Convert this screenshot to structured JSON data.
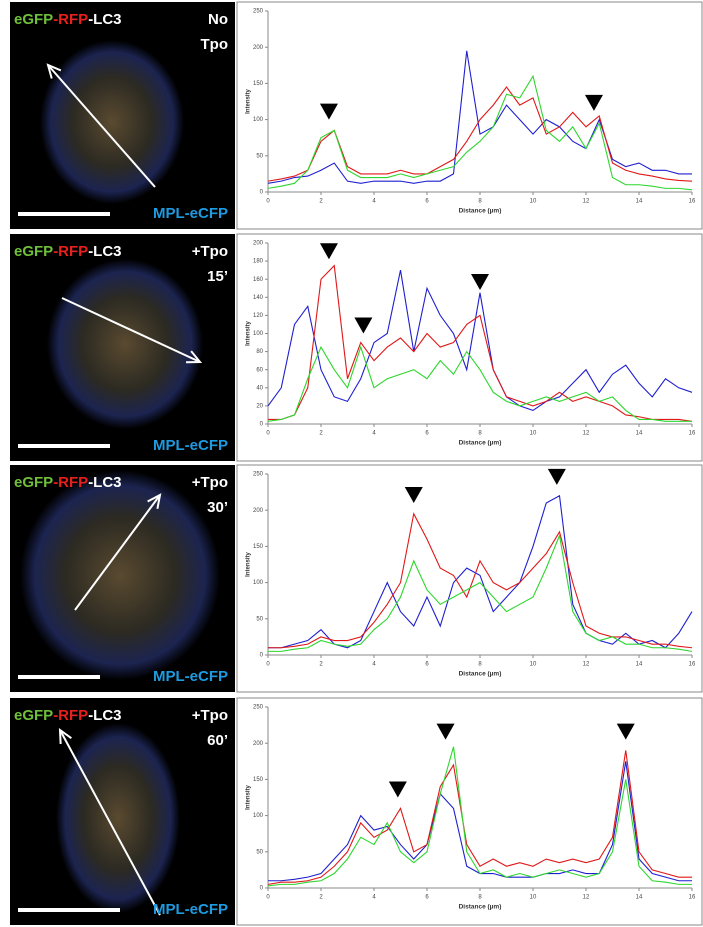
{
  "chart_data": [
    {
      "type": "line",
      "image_labels": {
        "egfp": "eGFP",
        "rfp": "-RFP",
        "lc3": "-LC3",
        "condition": [
          "No",
          "Tpo"
        ],
        "channel": "MPL-eCFP"
      },
      "xlabel": "Distance (µm)",
      "ylabel": "Intensity",
      "x": [
        0,
        0.5,
        1,
        1.5,
        2,
        2.5,
        3,
        3.5,
        4,
        4.5,
        5,
        5.5,
        6,
        6.5,
        7,
        7.5,
        8,
        8.5,
        9,
        9.5,
        10,
        10.5,
        11,
        11.5,
        12,
        12.5,
        13,
        13.5,
        14,
        14.5,
        15,
        15.5,
        16
      ],
      "series": [
        {
          "color": "#1f1fd0",
          "values": [
            12,
            15,
            20,
            22,
            30,
            40,
            15,
            12,
            15,
            15,
            15,
            12,
            15,
            15,
            25,
            195,
            80,
            90,
            120,
            100,
            80,
            100,
            90,
            70,
            60,
            100,
            45,
            35,
            40,
            30,
            30,
            25,
            25
          ]
        },
        {
          "color": "#e01818",
          "values": [
            15,
            18,
            22,
            30,
            70,
            85,
            35,
            25,
            25,
            25,
            30,
            25,
            25,
            35,
            45,
            70,
            100,
            120,
            145,
            120,
            130,
            80,
            90,
            110,
            90,
            105,
            40,
            30,
            25,
            22,
            18,
            16,
            15
          ]
        },
        {
          "color": "#2ed62e",
          "values": [
            5,
            8,
            12,
            30,
            75,
            85,
            30,
            20,
            20,
            20,
            25,
            20,
            25,
            30,
            35,
            55,
            70,
            90,
            135,
            130,
            160,
            85,
            70,
            90,
            60,
            95,
            20,
            10,
            10,
            8,
            5,
            5,
            3
          ]
        }
      ],
      "xlim": [
        0,
        16
      ],
      "ylim": [
        0,
        250
      ],
      "xticks": [
        0,
        2,
        4,
        6,
        8,
        10,
        12,
        14,
        16
      ],
      "yticks": [
        0,
        50,
        100,
        150,
        200,
        250
      ],
      "arrowheads": [
        {
          "x": 2.3,
          "y": 100
        },
        {
          "x": 12.3,
          "y": 112
        }
      ]
    },
    {
      "type": "line",
      "image_labels": {
        "egfp": "eGFP",
        "rfp": "-RFP",
        "lc3": "-LC3",
        "condition": [
          "+Tpo",
          "15’"
        ],
        "channel": "MPL-eCFP"
      },
      "xlabel": "Distance (µm)",
      "ylabel": "Intensity",
      "x": [
        0,
        0.5,
        1,
        1.5,
        2,
        2.5,
        3,
        3.5,
        4,
        4.5,
        5,
        5.5,
        6,
        6.5,
        7,
        7.5,
        8,
        8.5,
        9,
        9.5,
        10,
        10.5,
        11,
        11.5,
        12,
        12.5,
        13,
        13.5,
        14,
        14.5,
        15,
        15.5,
        16
      ],
      "series": [
        {
          "color": "#1f1fd0",
          "values": [
            20,
            40,
            110,
            130,
            60,
            30,
            25,
            50,
            90,
            100,
            170,
            80,
            150,
            120,
            100,
            60,
            145,
            60,
            30,
            20,
            15,
            25,
            30,
            45,
            60,
            35,
            55,
            65,
            45,
            30,
            50,
            40,
            35
          ]
        },
        {
          "color": "#e01818",
          "values": [
            5,
            5,
            10,
            40,
            160,
            175,
            50,
            90,
            70,
            85,
            95,
            80,
            100,
            85,
            90,
            110,
            120,
            60,
            30,
            25,
            20,
            25,
            35,
            25,
            30,
            25,
            20,
            10,
            8,
            5,
            5,
            5,
            3
          ]
        },
        {
          "color": "#2ed62e",
          "values": [
            3,
            5,
            10,
            50,
            85,
            60,
            40,
            85,
            40,
            50,
            55,
            60,
            50,
            70,
            55,
            80,
            60,
            35,
            25,
            20,
            25,
            30,
            25,
            30,
            35,
            25,
            30,
            15,
            5,
            5,
            3,
            3,
            3
          ]
        }
      ],
      "xlim": [
        0,
        16
      ],
      "ylim": [
        0,
        200
      ],
      "xticks": [
        0,
        2,
        4,
        6,
        8,
        10,
        12,
        14,
        16
      ],
      "yticks": [
        0,
        20,
        40,
        60,
        80,
        100,
        120,
        140,
        160,
        180,
        200
      ],
      "arrowheads": [
        {
          "x": 2.3,
          "y": 182
        },
        {
          "x": 3.6,
          "y": 100
        },
        {
          "x": 8,
          "y": 148
        }
      ]
    },
    {
      "type": "line",
      "image_labels": {
        "egfp": "eGFP",
        "rfp": "-RFP",
        "lc3": "-LC3",
        "condition": [
          "+Tpo",
          "30’"
        ],
        "channel": "MPL-eCFP"
      },
      "xlabel": "Distance (µm)",
      "ylabel": "Intensity",
      "x": [
        0,
        0.5,
        1,
        1.5,
        2,
        2.5,
        3,
        3.5,
        4,
        4.5,
        5,
        5.5,
        6,
        6.5,
        7,
        7.5,
        8,
        8.5,
        9,
        9.5,
        10,
        10.5,
        11,
        11.5,
        12,
        12.5,
        13,
        13.5,
        14,
        14.5,
        15,
        15.5,
        16
      ],
      "series": [
        {
          "color": "#1f1fd0",
          "values": [
            10,
            10,
            15,
            20,
            35,
            15,
            10,
            20,
            60,
            100,
            60,
            40,
            80,
            40,
            100,
            120,
            110,
            60,
            80,
            100,
            150,
            210,
            220,
            70,
            30,
            20,
            15,
            30,
            15,
            20,
            10,
            30,
            60
          ]
        },
        {
          "color": "#e01818",
          "values": [
            10,
            10,
            12,
            15,
            25,
            20,
            20,
            25,
            45,
            70,
            100,
            195,
            160,
            120,
            110,
            80,
            130,
            100,
            90,
            100,
            120,
            140,
            170,
            100,
            40,
            30,
            25,
            25,
            20,
            15,
            15,
            12,
            10
          ]
        },
        {
          "color": "#2ed62e",
          "values": [
            5,
            5,
            8,
            10,
            20,
            15,
            12,
            15,
            35,
            50,
            80,
            130,
            90,
            70,
            80,
            90,
            100,
            80,
            60,
            70,
            80,
            120,
            165,
            60,
            30,
            20,
            25,
            15,
            15,
            10,
            10,
            8,
            5
          ]
        }
      ],
      "xlim": [
        0,
        16
      ],
      "ylim": [
        0,
        250
      ],
      "xticks": [
        0,
        2,
        4,
        6,
        8,
        10,
        12,
        14,
        16
      ],
      "yticks": [
        0,
        50,
        100,
        150,
        200,
        250
      ],
      "arrowheads": [
        {
          "x": 5.5,
          "y": 210
        },
        {
          "x": 10.9,
          "y": 235
        }
      ]
    },
    {
      "type": "line",
      "image_labels": {
        "egfp": "eGFP",
        "rfp": "-RFP",
        "lc3": "-LC3",
        "condition": [
          "+Tpo",
          "60’"
        ],
        "channel": "MPL-eCFP"
      },
      "xlabel": "Distance (µm)",
      "ylabel": "Intensity",
      "x": [
        0,
        0.5,
        1,
        1.5,
        2,
        2.5,
        3,
        3.5,
        4,
        4.5,
        5,
        5.5,
        6,
        6.5,
        7,
        7.5,
        8,
        8.5,
        9,
        9.5,
        10,
        10.5,
        11,
        11.5,
        12,
        12.5,
        13,
        13.5,
        14,
        14.5,
        15,
        15.5,
        16
      ],
      "series": [
        {
          "color": "#1f1fd0",
          "values": [
            10,
            10,
            12,
            15,
            20,
            40,
            60,
            100,
            80,
            85,
            60,
            40,
            60,
            130,
            110,
            30,
            20,
            20,
            15,
            15,
            15,
            20,
            20,
            25,
            20,
            20,
            60,
            175,
            40,
            20,
            15,
            10,
            10
          ]
        },
        {
          "color": "#e01818",
          "values": [
            5,
            8,
            8,
            10,
            15,
            30,
            50,
            90,
            70,
            80,
            110,
            50,
            60,
            140,
            170,
            60,
            30,
            40,
            30,
            35,
            30,
            40,
            35,
            40,
            35,
            40,
            70,
            190,
            50,
            25,
            20,
            15,
            15
          ]
        },
        {
          "color": "#2ed62e",
          "values": [
            3,
            5,
            5,
            8,
            10,
            20,
            40,
            70,
            60,
            90,
            50,
            35,
            50,
            130,
            195,
            50,
            20,
            25,
            15,
            20,
            15,
            20,
            25,
            20,
            15,
            20,
            50,
            150,
            30,
            10,
            8,
            5,
            5
          ]
        }
      ],
      "xlim": [
        0,
        16
      ],
      "ylim": [
        0,
        250
      ],
      "xticks": [
        0,
        2,
        4,
        6,
        8,
        10,
        12,
        14,
        16
      ],
      "yticks": [
        0,
        50,
        100,
        150,
        200,
        250
      ],
      "arrowheads": [
        {
          "x": 4.9,
          "y": 125
        },
        {
          "x": 6.7,
          "y": 205
        },
        {
          "x": 13.5,
          "y": 205
        }
      ]
    }
  ]
}
